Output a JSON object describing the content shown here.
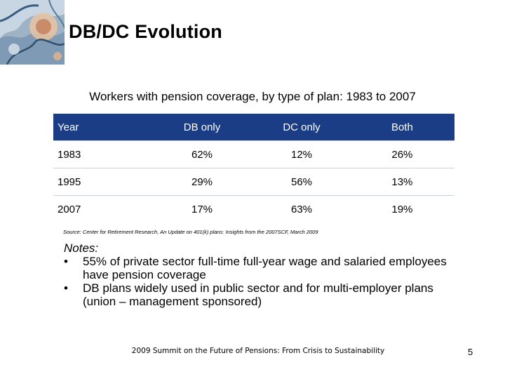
{
  "slide": {
    "title": "DB/DC Evolution",
    "subtitle": "Workers with pension coverage, by type of plan: 1983 to 2007",
    "table": {
      "headers": [
        "Year",
        "DB only",
        "DC only",
        "Both"
      ],
      "rows": [
        [
          "1983",
          "62%",
          "12%",
          "26%"
        ],
        [
          "1995",
          "29%",
          "56%",
          "13%"
        ],
        [
          "2007",
          "17%",
          "63%",
          "19%"
        ]
      ],
      "header_bg": "#1b3d86",
      "header_text_color": "#ffffff"
    },
    "source": "Source: Center for Retirement Research, An Update on 401(k) plans: Insights from the 2007SCF, March 2009",
    "notes": {
      "label": "Notes:",
      "items": [
        "55% of private sector full-time full-year wage and salaried employees have pension coverage",
        "DB plans widely used in public sector and for multi-employer plans (union – management sponsored)"
      ]
    },
    "footer": "2009 Summit on the Future of Pensions: From Crisis to Sustainability",
    "page_number": "5"
  }
}
